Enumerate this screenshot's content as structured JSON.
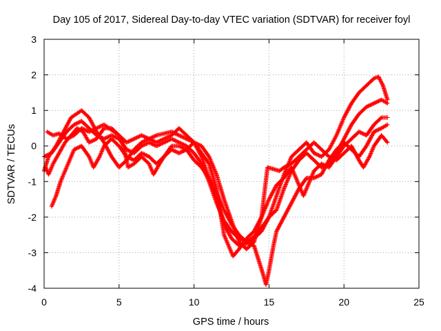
{
  "chart_data": {
    "type": "scatter",
    "title": "Day 105 of 2017, Sidereal Day-to-day VTEC variation (SDTVAR) for receiver foyl",
    "xlabel": "GPS time / hours",
    "ylabel": "SDTVAR / TECUs",
    "xlim": [
      0,
      25
    ],
    "ylim": [
      -4,
      3
    ],
    "xticks": [
      0,
      5,
      10,
      15,
      20,
      25
    ],
    "yticks": [
      -4,
      -3,
      -2,
      -1,
      0,
      1,
      2,
      3
    ],
    "grid": true,
    "marker": "+",
    "color": "#ff0000",
    "series": [
      {
        "values": [
          [
            0.0,
            -0.7
          ],
          [
            0.3,
            -0.3
          ],
          [
            0.8,
            0.0
          ],
          [
            1.3,
            0.4
          ],
          [
            1.8,
            0.8
          ],
          [
            2.5,
            1.0
          ],
          [
            3.0,
            0.8
          ],
          [
            3.5,
            0.4
          ],
          [
            4.0,
            0.1
          ],
          [
            4.5,
            -0.3
          ],
          [
            5.0,
            -0.6
          ],
          [
            5.5,
            -0.4
          ],
          [
            6.0,
            -0.1
          ],
          [
            6.5,
            0.1
          ],
          [
            7.0,
            0.2
          ],
          [
            7.5,
            0.3
          ],
          [
            8.0,
            0.35
          ],
          [
            8.5,
            0.4
          ],
          [
            9.0,
            0.3
          ],
          [
            9.5,
            0.2
          ],
          [
            10.0,
            0.1
          ],
          [
            10.5,
            -0.3
          ],
          [
            11.0,
            -0.9
          ],
          [
            11.5,
            -1.5
          ],
          [
            12.0,
            -2.2
          ],
          [
            12.5,
            -2.6
          ],
          [
            13.0,
            -2.8
          ],
          [
            13.5,
            -2.75
          ],
          [
            14.0,
            -2.6
          ],
          [
            14.5,
            -2.4
          ],
          [
            15.0,
            -2.0
          ],
          [
            15.5,
            -1.4
          ],
          [
            16.0,
            -0.8
          ],
          [
            16.5,
            -0.3
          ],
          [
            17.0,
            -0.1
          ],
          [
            17.5,
            0.1
          ],
          [
            18.0,
            -0.2
          ],
          [
            18.5,
            -0.3
          ],
          [
            19.0,
            -0.1
          ],
          [
            19.5,
            0.3
          ],
          [
            20.0,
            0.8
          ],
          [
            20.5,
            1.2
          ],
          [
            21.0,
            1.5
          ],
          [
            21.5,
            1.7
          ],
          [
            22.0,
            1.9
          ],
          [
            22.3,
            1.95
          ],
          [
            22.6,
            1.7
          ],
          [
            22.9,
            1.3
          ]
        ]
      },
      {
        "values": [
          [
            0.0,
            -0.3
          ],
          [
            0.5,
            -0.2
          ],
          [
            1.0,
            0.1
          ],
          [
            1.5,
            0.4
          ],
          [
            2.0,
            0.6
          ],
          [
            2.5,
            0.7
          ],
          [
            3.0,
            0.5
          ],
          [
            3.5,
            0.3
          ],
          [
            4.0,
            0.2
          ],
          [
            4.5,
            0.3
          ],
          [
            5.0,
            0.2
          ],
          [
            5.5,
            -0.1
          ],
          [
            6.0,
            -0.2
          ],
          [
            6.5,
            0.0
          ],
          [
            7.0,
            0.1
          ],
          [
            7.5,
            0.0
          ],
          [
            8.0,
            0.1
          ],
          [
            8.5,
            0.2
          ],
          [
            9.0,
            0.1
          ],
          [
            9.5,
            0.0
          ],
          [
            10.0,
            -0.2
          ],
          [
            10.5,
            -0.5
          ],
          [
            11.0,
            -1.0
          ],
          [
            11.5,
            -1.6
          ],
          [
            12.0,
            -2.1
          ],
          [
            12.5,
            -2.4
          ],
          [
            13.0,
            -2.6
          ],
          [
            13.5,
            -2.7
          ],
          [
            14.0,
            -2.55
          ],
          [
            14.5,
            -2.3
          ],
          [
            15.0,
            -2.0
          ],
          [
            15.5,
            -1.8
          ],
          [
            16.0,
            -1.2
          ],
          [
            16.5,
            -0.7
          ],
          [
            17.0,
            -0.4
          ],
          [
            17.5,
            -0.2
          ],
          [
            18.0,
            -0.4
          ],
          [
            18.5,
            -0.6
          ],
          [
            19.0,
            -0.5
          ],
          [
            19.5,
            -0.2
          ],
          [
            20.0,
            0.2
          ],
          [
            20.5,
            0.6
          ],
          [
            21.0,
            0.9
          ],
          [
            21.5,
            1.1
          ],
          [
            22.0,
            1.2
          ],
          [
            22.5,
            1.3
          ],
          [
            22.9,
            1.2
          ]
        ]
      },
      {
        "values": [
          [
            0.5,
            -1.7
          ],
          [
            0.8,
            -1.4
          ],
          [
            1.1,
            -1.0
          ],
          [
            1.4,
            -0.7
          ],
          [
            1.7,
            -0.4
          ],
          [
            2.0,
            -0.1
          ],
          [
            2.5,
            0.0
          ],
          [
            3.0,
            -0.3
          ],
          [
            3.3,
            -0.6
          ],
          [
            3.7,
            -0.3
          ],
          [
            4.0,
            0.0
          ],
          [
            4.5,
            0.2
          ],
          [
            5.0,
            0.0
          ],
          [
            5.5,
            -0.3
          ],
          [
            6.0,
            -0.4
          ],
          [
            6.5,
            -0.2
          ],
          [
            7.0,
            -0.3
          ],
          [
            7.5,
            -0.5
          ],
          [
            8.0,
            -0.3
          ],
          [
            8.5,
            0.0
          ],
          [
            9.0,
            0.0
          ],
          [
            9.5,
            -0.1
          ],
          [
            10.0,
            -0.4
          ],
          [
            10.5,
            -0.6
          ],
          [
            11.0,
            -0.9
          ],
          [
            11.5,
            -1.3
          ],
          [
            12.0,
            -1.8
          ],
          [
            12.5,
            -2.2
          ],
          [
            13.0,
            -2.5
          ],
          [
            13.5,
            -2.7
          ],
          [
            14.0,
            -2.8
          ],
          [
            14.3,
            -3.2
          ],
          [
            14.6,
            -3.6
          ],
          [
            14.8,
            -3.9
          ],
          [
            15.0,
            -3.5
          ],
          [
            15.3,
            -2.8
          ],
          [
            15.5,
            -2.4
          ],
          [
            16.0,
            -2.0
          ],
          [
            16.5,
            -1.6
          ],
          [
            17.0,
            -1.2
          ],
          [
            17.5,
            -0.9
          ],
          [
            18.0,
            -0.9
          ],
          [
            18.5,
            -0.8
          ],
          [
            19.0,
            -0.4
          ],
          [
            19.5,
            -0.1
          ],
          [
            20.0,
            0.1
          ],
          [
            20.5,
            -0.1
          ],
          [
            21.0,
            -0.3
          ],
          [
            21.5,
            0.0
          ],
          [
            22.0,
            0.4
          ],
          [
            22.5,
            0.5
          ],
          [
            22.9,
            0.6
          ]
        ]
      },
      {
        "values": [
          [
            0.1,
            -0.6
          ],
          [
            0.3,
            -0.8
          ],
          [
            0.6,
            -0.5
          ],
          [
            1.0,
            -0.2
          ],
          [
            1.4,
            0.1
          ],
          [
            1.8,
            0.3
          ],
          [
            2.2,
            0.5
          ],
          [
            2.6,
            0.4
          ],
          [
            3.0,
            0.1
          ],
          [
            3.5,
            0.2
          ],
          [
            4.0,
            0.5
          ],
          [
            4.5,
            0.5
          ],
          [
            5.0,
            0.3
          ],
          [
            5.3,
            0.0
          ],
          [
            5.6,
            -0.6
          ],
          [
            6.0,
            -0.5
          ],
          [
            6.5,
            -0.3
          ],
          [
            7.0,
            -0.5
          ],
          [
            7.3,
            -0.8
          ],
          [
            7.7,
            -0.5
          ],
          [
            8.0,
            -0.3
          ],
          [
            8.5,
            -0.1
          ],
          [
            9.0,
            -0.2
          ],
          [
            9.5,
            -0.1
          ],
          [
            10.0,
            0.1
          ],
          [
            10.5,
            -0.2
          ],
          [
            11.0,
            -0.5
          ],
          [
            11.5,
            -1.2
          ],
          [
            12.0,
            -2.5
          ],
          [
            12.3,
            -2.8
          ],
          [
            12.6,
            -3.1
          ],
          [
            13.0,
            -2.9
          ],
          [
            13.5,
            -2.6
          ],
          [
            14.0,
            -2.4
          ],
          [
            14.5,
            -2.0
          ],
          [
            15.0,
            -1.5
          ],
          [
            15.5,
            -1.1
          ],
          [
            16.0,
            -0.9
          ],
          [
            16.5,
            -0.6
          ],
          [
            17.0,
            -1.1
          ],
          [
            17.3,
            -1.4
          ],
          [
            17.7,
            -1.0
          ],
          [
            18.0,
            -0.7
          ],
          [
            18.5,
            -0.5
          ],
          [
            19.0,
            -0.6
          ],
          [
            19.5,
            -0.3
          ],
          [
            20.0,
            0.0
          ],
          [
            20.5,
            0.2
          ],
          [
            21.0,
            0.4
          ],
          [
            21.5,
            0.3
          ],
          [
            22.0,
            0.6
          ],
          [
            22.5,
            0.8
          ],
          [
            22.9,
            0.8
          ]
        ]
      },
      {
        "values": [
          [
            0.2,
            0.4
          ],
          [
            0.6,
            0.3
          ],
          [
            1.0,
            0.35
          ],
          [
            1.5,
            0.2
          ],
          [
            2.0,
            0.3
          ],
          [
            2.5,
            0.5
          ],
          [
            3.0,
            0.4
          ],
          [
            3.5,
            0.5
          ],
          [
            4.0,
            0.6
          ],
          [
            4.5,
            0.45
          ],
          [
            5.0,
            0.3
          ],
          [
            5.5,
            0.1
          ],
          [
            6.0,
            0.2
          ],
          [
            6.5,
            0.3
          ],
          [
            7.0,
            0.2
          ],
          [
            7.5,
            0.1
          ],
          [
            8.0,
            0.2
          ],
          [
            8.5,
            0.3
          ],
          [
            9.0,
            0.5
          ],
          [
            9.5,
            0.3
          ],
          [
            10.0,
            0.1
          ],
          [
            10.5,
            0.0
          ],
          [
            11.0,
            -0.3
          ],
          [
            11.5,
            -0.8
          ],
          [
            12.0,
            -1.5
          ],
          [
            12.5,
            -2.1
          ],
          [
            13.0,
            -2.7
          ],
          [
            13.5,
            -2.9
          ],
          [
            14.0,
            -2.7
          ],
          [
            14.5,
            -2.0
          ],
          [
            14.9,
            -0.6
          ],
          [
            15.3,
            -0.65
          ],
          [
            15.7,
            -0.7
          ],
          [
            16.0,
            -0.6
          ],
          [
            16.5,
            -0.5
          ],
          [
            17.0,
            -0.3
          ],
          [
            17.5,
            -0.1
          ],
          [
            18.0,
            0.1
          ],
          [
            18.5,
            -0.1
          ],
          [
            19.0,
            -0.3
          ],
          [
            19.5,
            -0.4
          ],
          [
            20.0,
            -0.2
          ],
          [
            20.5,
            0.0
          ],
          [
            21.0,
            -0.4
          ],
          [
            21.3,
            -0.6
          ],
          [
            21.7,
            -0.3
          ],
          [
            22.0,
            0.0
          ],
          [
            22.5,
            0.3
          ],
          [
            22.9,
            0.1
          ]
        ]
      }
    ]
  }
}
